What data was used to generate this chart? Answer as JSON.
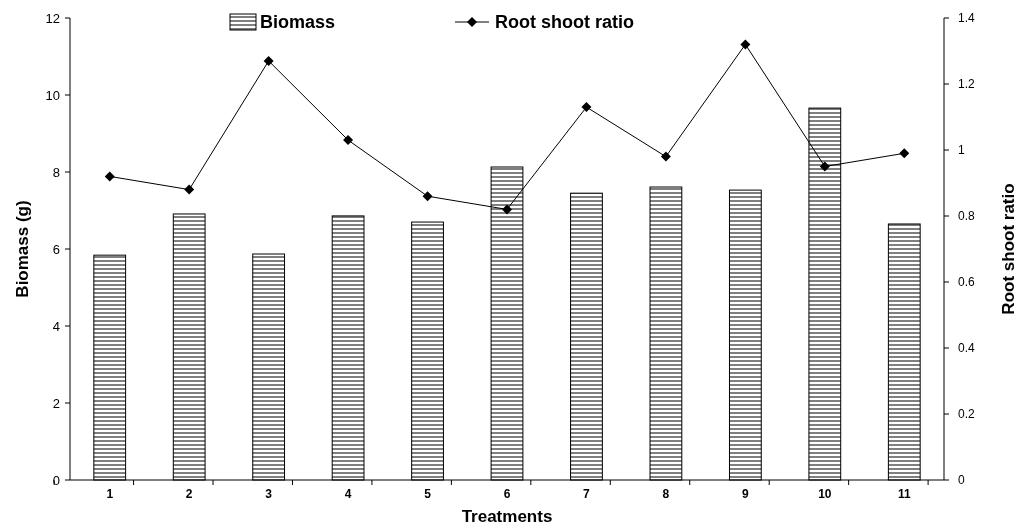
{
  "chart_data": {
    "type": "bar",
    "xlabel": "Treatments",
    "ylabel": "Biomass (g)",
    "y2label": "Root shoot ratio",
    "categories": [
      "1",
      "2",
      "3",
      "4",
      "5",
      "6",
      "7",
      "8",
      "9",
      "10",
      "11"
    ],
    "series": [
      {
        "name": "Biomass",
        "color": "#000000",
        "values": [
          5.84,
          6.91,
          5.87,
          6.86,
          6.7,
          8.13,
          7.45,
          7.61,
          7.53,
          9.66,
          6.65
        ]
      },
      {
        "name": "Root shoot ratio",
        "type": "line",
        "axis": "y2",
        "color": "#000000",
        "marker": "diamond",
        "values": [
          0.92,
          0.88,
          1.27,
          1.03,
          0.86,
          0.82,
          1.13,
          0.98,
          1.32,
          0.95,
          0.99
        ]
      }
    ],
    "ylim": [
      0,
      12
    ],
    "yticks": [
      0,
      2,
      4,
      6,
      8,
      10,
      12
    ],
    "y2lim": [
      0,
      1.4
    ],
    "y2ticks": [
      0,
      0.2,
      0.4,
      0.6,
      0.8,
      1,
      1.2,
      1.4
    ],
    "grid": false,
    "legend": "top"
  }
}
